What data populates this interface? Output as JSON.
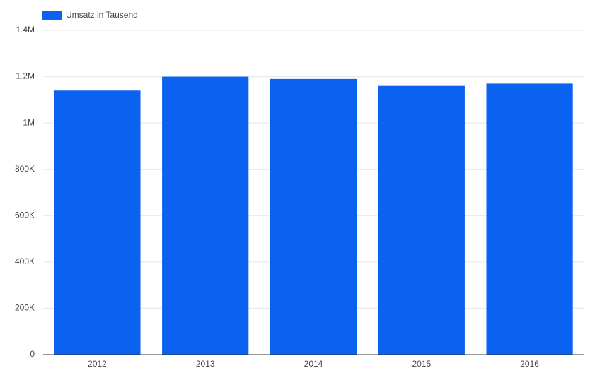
{
  "chart_data": {
    "type": "bar",
    "legend": "Umsatz in Tausend",
    "color": "#0b61f0",
    "categories": [
      "2012",
      "2013",
      "2014",
      "2015",
      "2016"
    ],
    "series": [
      {
        "name": "Umsatz in Tausend",
        "color": "#0b61f0",
        "values": [
          1140000,
          1200000,
          1190000,
          1160000,
          1170000
        ]
      }
    ],
    "ylim": [
      0,
      1400000
    ],
    "yticks": [
      0,
      {
        "value": 200000,
        "label": "200K"
      },
      {
        "value": 400000,
        "label": "400K"
      },
      {
        "value": 600000,
        "label": "600K"
      },
      {
        "value": 800000,
        "label": "800K"
      },
      {
        "value": 1000000,
        "label": "1M"
      },
      {
        "value": 1200000,
        "label": "1.2M"
      },
      {
        "value": 1400000,
        "label": "1.4M"
      }
    ],
    "grid": true,
    "legend_position": "top-left"
  }
}
